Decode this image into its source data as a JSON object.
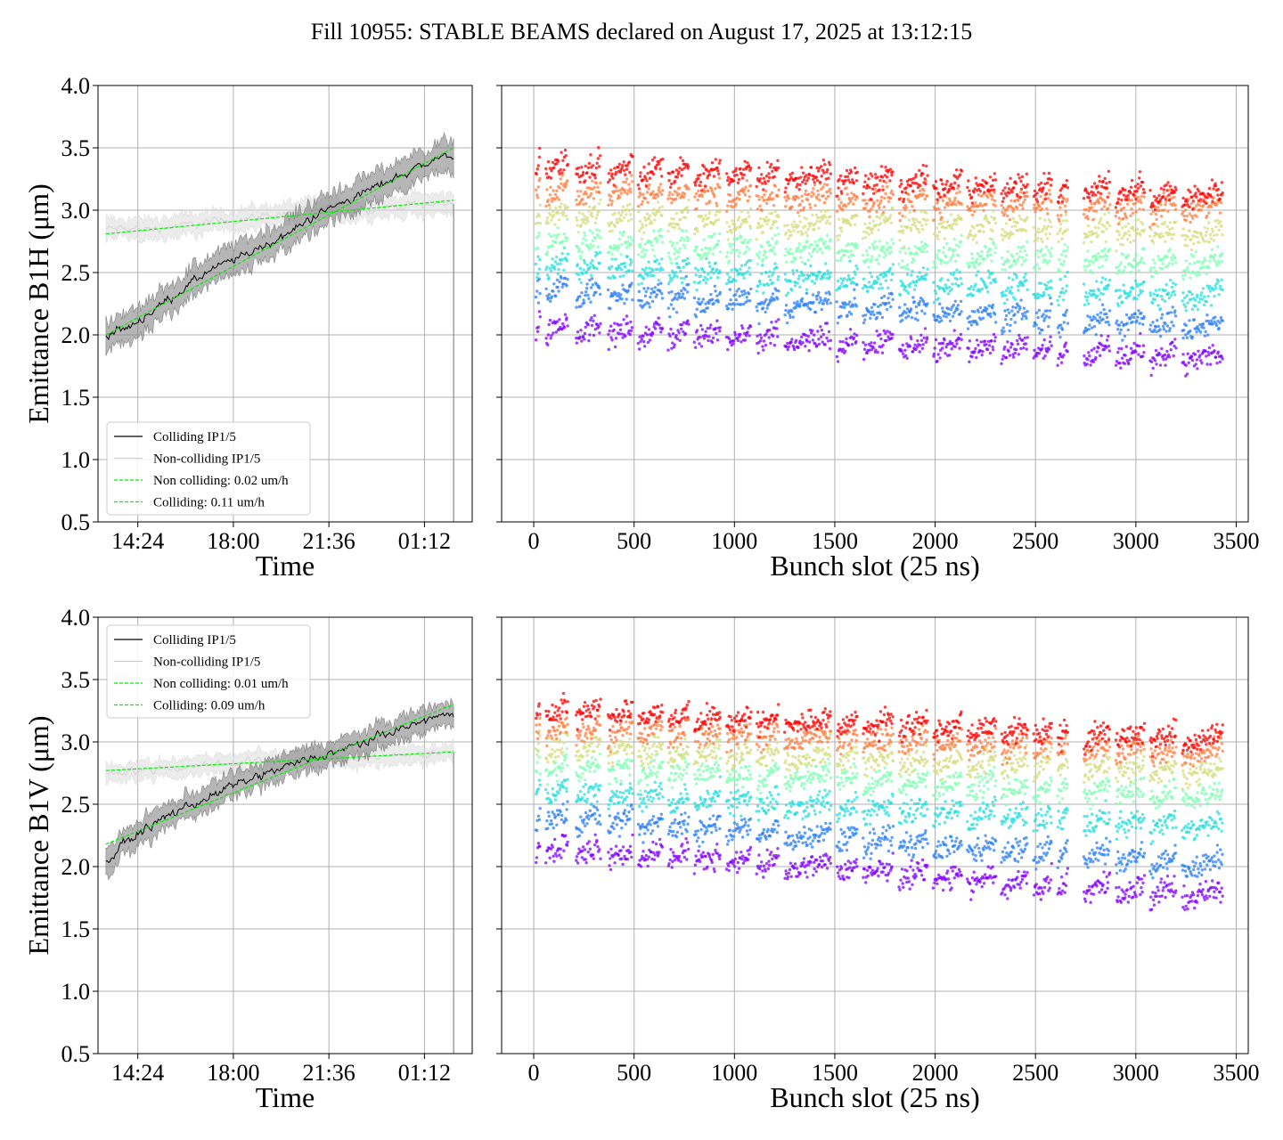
{
  "title": "Fill 10955: STABLE BEAMS declared on August 17, 2025 at 13:12:15",
  "chart_data": [
    {
      "type": "line",
      "ylabel": "Emittance B1H (μm)",
      "xlabel": "Time",
      "x_ticks": [
        "14:24",
        "18:00",
        "21:36",
        "01:12"
      ],
      "x_tick_hours": [
        14.4,
        18.0,
        21.6,
        25.2
      ],
      "xlim_hours": [
        12.9,
        27.0
      ],
      "ylim": [
        0.5,
        4.0
      ],
      "y_ticks": [
        "0.5",
        "1.0",
        "1.5",
        "2.0",
        "2.5",
        "3.0",
        "3.5",
        "4.0"
      ],
      "grid": true,
      "legend_position": "lower-left",
      "legend": [
        "Colliding IP1/5",
        "Non-colliding IP1/5",
        "Non colliding: 0.02 um/h",
        "Colliding: 0.11 um/h"
      ],
      "colors": {
        "colliding": "#000000",
        "noncolliding": "#d8d8d8",
        "fit": "#00ee00"
      },
      "series": [
        {
          "name": "Colliding IP1/5",
          "x": [
            13.2,
            14.0,
            15.0,
            16.0,
            17.0,
            18.0,
            19.0,
            20.0,
            21.0,
            22.0,
            23.0,
            24.0,
            25.0,
            25.5,
            26.3
          ],
          "y": [
            2.0,
            2.05,
            2.2,
            2.35,
            2.5,
            2.6,
            2.7,
            2.8,
            2.95,
            3.05,
            3.15,
            3.25,
            3.35,
            3.4,
            3.45
          ],
          "band": 0.12
        },
        {
          "name": "Non-colliding IP1/5",
          "x": [
            13.2,
            15.0,
            17.0,
            19.0,
            21.0,
            23.0,
            25.0,
            26.3
          ],
          "y": [
            2.85,
            2.85,
            2.9,
            2.95,
            3.0,
            3.0,
            3.05,
            3.05
          ],
          "band": 0.08
        },
        {
          "name": "Non colliding: 0.02 um/h",
          "x": [
            13.2,
            26.3
          ],
          "y": [
            2.81,
            3.08
          ]
        },
        {
          "name": "Colliding: 0.11 um/h",
          "x": [
            13.2,
            26.3
          ],
          "y": [
            2.0,
            3.5
          ]
        }
      ]
    },
    {
      "type": "scatter",
      "xlabel": "Bunch slot (25 ns)",
      "x_ticks": [
        "0",
        "500",
        "1000",
        "1500",
        "2000",
        "2500",
        "3000",
        "3500"
      ],
      "xlim": [
        -160,
        3560
      ],
      "ylim": [
        0.5,
        4.0
      ],
      "grid": true,
      "colormap": "rainbow",
      "trains_start": [
        10,
        60,
        210,
        370,
        520,
        670,
        800,
        960,
        1110,
        1250,
        1510,
        1640,
        1820,
        1990,
        2160,
        2330,
        2490,
        2610,
        2740,
        2900,
        3070,
        3230
      ],
      "trains_end": [
        30,
        170,
        330,
        490,
        640,
        770,
        930,
        1080,
        1220,
        1480,
        1610,
        1790,
        1960,
        2130,
        2300,
        2460,
        2580,
        2660,
        2870,
        3040,
        3200,
        3430
      ],
      "level_start": [
        2.0,
        2.3,
        2.5,
        2.7,
        2.9,
        3.1,
        3.3
      ],
      "level_end": [
        1.75,
        2.0,
        2.25,
        2.5,
        2.75,
        2.95,
        3.05
      ]
    },
    {
      "type": "line",
      "ylabel": "Emittance B1V (μm)",
      "xlabel": "Time",
      "x_ticks": [
        "14:24",
        "18:00",
        "21:36",
        "01:12"
      ],
      "x_tick_hours": [
        14.4,
        18.0,
        21.6,
        25.2
      ],
      "xlim_hours": [
        12.9,
        27.0
      ],
      "ylim": [
        0.5,
        4.0
      ],
      "y_ticks": [
        "0.5",
        "1.0",
        "1.5",
        "2.0",
        "2.5",
        "3.0",
        "3.5",
        "4.0"
      ],
      "grid": true,
      "legend_position": "upper-left",
      "legend": [
        "Colliding IP1/5",
        "Non-colliding IP1/5",
        "Non colliding: 0.01 um/h",
        "Colliding: 0.09 um/h"
      ],
      "colors": {
        "colliding": "#000000",
        "noncolliding": "#d8d8d8",
        "fit": "#00ee00"
      },
      "series": [
        {
          "name": "Colliding IP1/5",
          "x": [
            13.2,
            14.0,
            15.0,
            16.0,
            17.0,
            18.0,
            19.0,
            20.0,
            21.0,
            22.0,
            23.0,
            24.0,
            25.0,
            25.5,
            26.3
          ],
          "y": [
            2.05,
            2.2,
            2.35,
            2.45,
            2.55,
            2.65,
            2.72,
            2.8,
            2.87,
            2.92,
            3.0,
            3.08,
            3.15,
            3.2,
            3.2
          ],
          "band": 0.1
        },
        {
          "name": "Non-colliding IP1/5",
          "x": [
            13.2,
            15.0,
            17.0,
            19.0,
            21.0,
            23.0,
            25.0,
            26.3
          ],
          "y": [
            2.75,
            2.78,
            2.82,
            2.85,
            2.87,
            2.88,
            2.9,
            2.92
          ],
          "band": 0.07
        },
        {
          "name": "Non colliding: 0.01 um/h",
          "x": [
            13.2,
            26.3
          ],
          "y": [
            2.77,
            2.92
          ]
        },
        {
          "name": "Colliding: 0.09 um/h",
          "x": [
            13.2,
            26.3
          ],
          "y": [
            2.18,
            3.3
          ]
        }
      ]
    },
    {
      "type": "scatter",
      "xlabel": "Bunch slot (25 ns)",
      "x_ticks": [
        "0",
        "500",
        "1000",
        "1500",
        "2000",
        "2500",
        "3000",
        "3500"
      ],
      "xlim": [
        -160,
        3560
      ],
      "ylim": [
        0.5,
        4.0
      ],
      "grid": true,
      "colormap": "rainbow",
      "trains_start": [
        10,
        60,
        210,
        370,
        520,
        670,
        800,
        960,
        1110,
        1250,
        1510,
        1640,
        1820,
        1990,
        2160,
        2330,
        2490,
        2610,
        2740,
        2900,
        3070,
        3230
      ],
      "trains_end": [
        30,
        170,
        330,
        490,
        640,
        770,
        930,
        1080,
        1220,
        1480,
        1610,
        1790,
        1960,
        2130,
        2300,
        2460,
        2580,
        2660,
        2870,
        3040,
        3200,
        3430
      ],
      "level_start": [
        2.1,
        2.35,
        2.55,
        2.75,
        2.9,
        3.05,
        3.2
      ],
      "level_end": [
        1.7,
        1.95,
        2.25,
        2.5,
        2.7,
        2.85,
        2.95
      ]
    }
  ]
}
